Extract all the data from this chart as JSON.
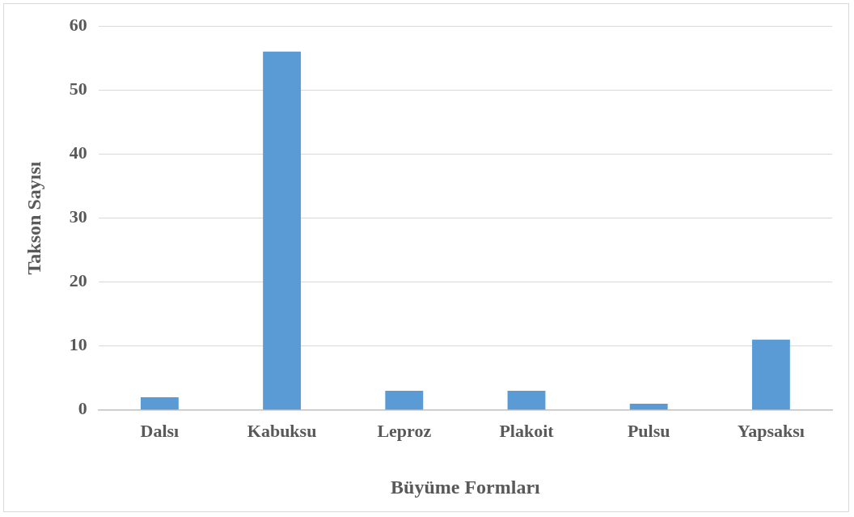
{
  "chart_data": {
    "type": "bar",
    "xlabel": "Büyüme Formları",
    "ylabel": "Takson Sayısı",
    "categories": [
      "Dalsı",
      "Kabuksu",
      "Leproz",
      "Plakoit",
      "Pulsu",
      "Yapsaksı"
    ],
    "values": [
      2,
      56,
      3,
      3,
      1,
      11
    ],
    "color": "#5b9bd5",
    "ylim": [
      0,
      60
    ],
    "yticks": [
      0,
      10,
      20,
      30,
      40,
      50,
      60
    ],
    "grid": "y",
    "legend": false
  }
}
